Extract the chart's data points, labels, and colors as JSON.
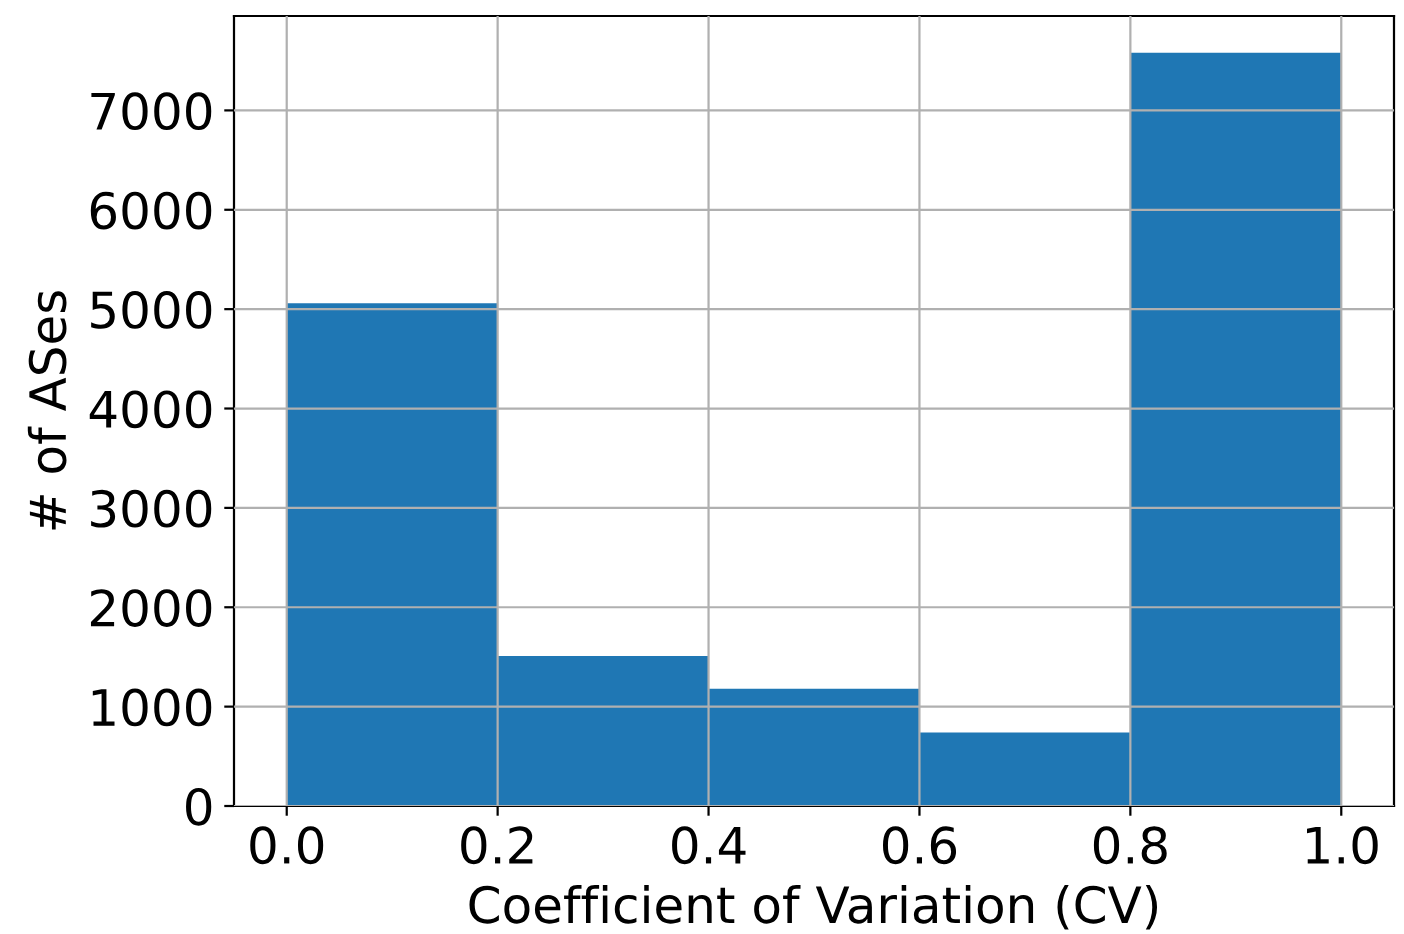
{
  "chart_data": {
    "type": "histogram",
    "xlabel": "Coefficient of Variation (CV)",
    "ylabel": "# of ASes",
    "bins": [
      0.0,
      0.2,
      0.4,
      0.6,
      0.8,
      1.0
    ],
    "values": [
      5060,
      1510,
      1180,
      740,
      7580
    ],
    "color": "#1f77b4",
    "xlim": [
      -0.05,
      1.05
    ],
    "xticks": [
      {
        "value": 0.0,
        "label": "0.0"
      },
      {
        "value": 0.2,
        "label": "0.2"
      },
      {
        "value": 0.4,
        "label": "0.4"
      },
      {
        "value": 0.6,
        "label": "0.6"
      },
      {
        "value": 0.8,
        "label": "0.8"
      },
      {
        "value": 1.0,
        "label": "1.0"
      }
    ],
    "ylim": [
      0,
      7950
    ],
    "yticks": [
      0,
      1000,
      2000,
      3000,
      4000,
      5000,
      6000,
      7000
    ],
    "grid": true
  }
}
